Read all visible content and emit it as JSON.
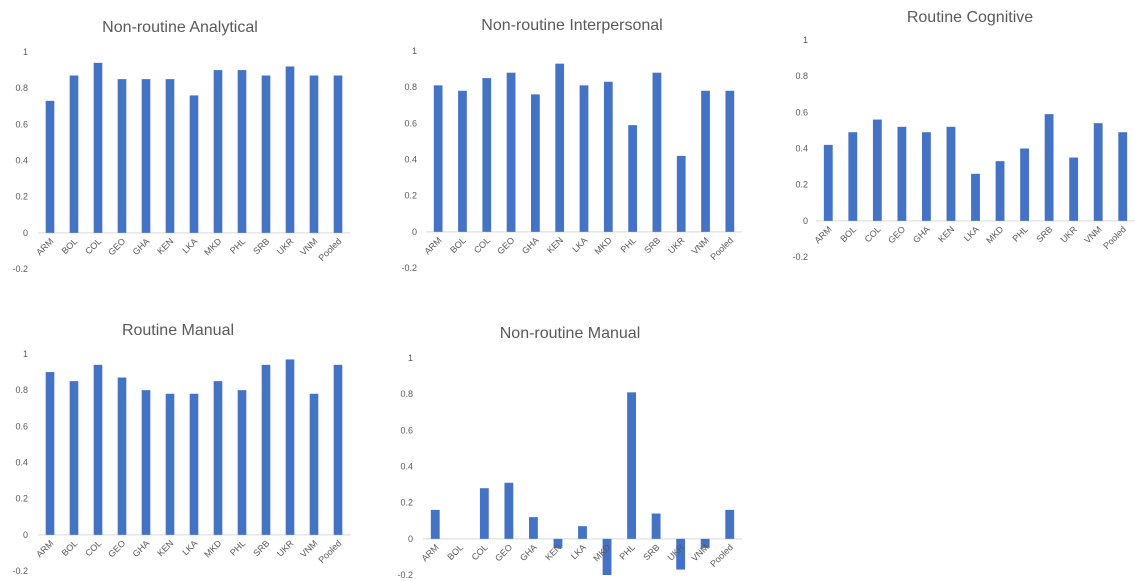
{
  "chart_data": [
    {
      "type": "bar",
      "title": "Non-routine Analytical",
      "categories": [
        "ARM",
        "BOL",
        "COL",
        "GEO",
        "GHA",
        "KEN",
        "LKA",
        "MKD",
        "PHL",
        "SRB",
        "UKR",
        "VNM",
        "Pooled"
      ],
      "values": [
        0.73,
        0.87,
        0.94,
        0.85,
        0.85,
        0.85,
        0.76,
        0.9,
        0.9,
        0.87,
        0.92,
        0.87,
        0.87
      ],
      "ylim": [
        -0.2,
        1
      ],
      "yticks": [
        "-0.2",
        "0",
        "0.2",
        "0.4",
        "0.6",
        "0.8",
        "1"
      ],
      "color": "#4472c4"
    },
    {
      "type": "bar",
      "title": "Non-routine Interpersonal",
      "categories": [
        "ARM",
        "BOL",
        "COL",
        "GEO",
        "GHA",
        "KEN",
        "LKA",
        "MKD",
        "PHL",
        "SRB",
        "UKR",
        "VNM",
        "Pooled"
      ],
      "values": [
        0.81,
        0.78,
        0.85,
        0.88,
        0.76,
        0.93,
        0.81,
        0.83,
        0.59,
        0.88,
        0.42,
        0.78,
        0.78
      ],
      "ylim": [
        -0.2,
        1
      ],
      "yticks": [
        "-0.2",
        "0",
        "0.2",
        "0.4",
        "0.6",
        "0.8",
        "1"
      ],
      "color": "#4472c4"
    },
    {
      "type": "bar",
      "title": "Routine Cognitive",
      "categories": [
        "ARM",
        "BOL",
        "COL",
        "GEO",
        "GHA",
        "KEN",
        "LKA",
        "MKD",
        "PHL",
        "SRB",
        "UKR",
        "VNM",
        "Pooled"
      ],
      "values": [
        0.42,
        0.49,
        0.56,
        0.52,
        0.49,
        0.52,
        0.26,
        0.33,
        0.4,
        0.59,
        0.35,
        0.54,
        0.49
      ],
      "ylim": [
        -0.2,
        1
      ],
      "yticks": [
        "-0.2",
        "0",
        "0.2",
        "0.4",
        "0.6",
        "0.8",
        "1"
      ],
      "color": "#4472c4"
    },
    {
      "type": "bar",
      "title": "Routine Manual",
      "categories": [
        "ARM",
        "BOL",
        "COL",
        "GEO",
        "GHA",
        "KEN",
        "LKA",
        "MKD",
        "PHL",
        "SRB",
        "UKR",
        "VNM",
        "Pooled"
      ],
      "values": [
        0.9,
        0.85,
        0.94,
        0.87,
        0.8,
        0.78,
        0.78,
        0.85,
        0.8,
        0.94,
        0.97,
        0.78,
        0.94
      ],
      "ylim": [
        -0.2,
        1
      ],
      "yticks": [
        "-0.2",
        "0",
        "0.2",
        "0.4",
        "0.6",
        "0.8",
        "1"
      ],
      "color": "#4472c4"
    },
    {
      "type": "bar",
      "title": "Non-routine Manual",
      "categories": [
        "ARM",
        "BOL",
        "COL",
        "GEO",
        "GHA",
        "KEN",
        "LKA",
        "MKD",
        "PHL",
        "SRB",
        "UKR",
        "VNM",
        "Pooled"
      ],
      "values": [
        0.16,
        0.0,
        0.28,
        0.31,
        0.12,
        -0.05,
        0.07,
        -0.2,
        0.81,
        0.14,
        -0.17,
        -0.05,
        0.16
      ],
      "ylim": [
        -0.2,
        1
      ],
      "yticks": [
        "-0.2",
        "0",
        "0.2",
        "0.4",
        "0.6",
        "0.8",
        "1"
      ],
      "color": "#4472c4"
    }
  ]
}
